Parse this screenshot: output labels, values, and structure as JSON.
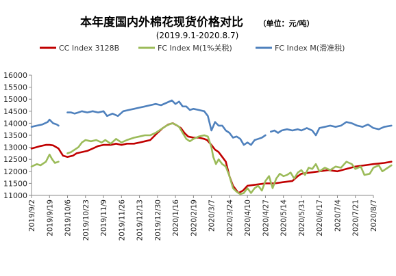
{
  "chart_data": {
    "type": "line",
    "title": "本年度国内外棉花现货价格对比",
    "unit_label": "（单位：元/吨）",
    "subtitle": "(2019.9.1-2020.8.7)",
    "ylim": [
      11000,
      16000
    ],
    "yticks": [
      11000,
      11500,
      12000,
      12500,
      13000,
      13500,
      14000,
      14500,
      15000,
      15500,
      16000
    ],
    "grid": false,
    "legend_position": "top",
    "x_tick_labels": [
      "2019/9/2",
      "2019/9/19",
      "2019/10/6",
      "2019/10/23",
      "2019/11/9",
      "2019/11/26",
      "2019/12/13",
      "2019/12/30",
      "2020/1/16",
      "2020/2/19",
      "2020/3/7",
      "2020/3/24",
      "2020/4/10",
      "2020/4/27",
      "2020/5/14",
      "2020/5/31",
      "2020/6/17",
      "2020/7/4",
      "2020/7/21",
      "2020/8/7"
    ],
    "series": [
      {
        "name": "CC Index 3128B",
        "color": "#c00000",
        "points": [
          [
            0,
            12950
          ],
          [
            0.25,
            13000
          ],
          [
            0.5,
            13050
          ],
          [
            0.8,
            13100
          ],
          [
            1.0,
            13100
          ],
          [
            1.2,
            13080
          ],
          [
            1.5,
            12950
          ],
          [
            1.75,
            12650
          ],
          [
            2.0,
            12600
          ],
          [
            2.3,
            12650
          ],
          [
            2.5,
            12750
          ],
          [
            2.8,
            12800
          ],
          [
            3.1,
            12850
          ],
          [
            3.4,
            12950
          ],
          [
            3.7,
            13050
          ],
          [
            4.0,
            13100
          ],
          [
            4.4,
            13100
          ],
          [
            4.7,
            13150
          ],
          [
            5.0,
            13100
          ],
          [
            5.3,
            13150
          ],
          [
            5.7,
            13150
          ],
          [
            6.0,
            13200
          ],
          [
            6.3,
            13250
          ],
          [
            6.6,
            13300
          ],
          [
            7.0,
            13600
          ],
          [
            7.3,
            13800
          ],
          [
            7.6,
            13950
          ],
          [
            7.85,
            14000
          ],
          [
            8.1,
            13900
          ],
          [
            8.3,
            13800
          ],
          [
            8.5,
            13600
          ],
          [
            8.7,
            13450
          ],
          [
            9.0,
            13400
          ],
          [
            9.3,
            13400
          ],
          [
            9.6,
            13350
          ],
          [
            9.75,
            13300
          ],
          [
            10.0,
            13100
          ],
          [
            10.2,
            12900
          ],
          [
            10.4,
            12800
          ],
          [
            10.6,
            12600
          ],
          [
            10.8,
            12400
          ],
          [
            11.0,
            11800
          ],
          [
            11.2,
            11400
          ],
          [
            11.5,
            11100
          ],
          [
            11.75,
            11200
          ],
          [
            12.0,
            11400
          ],
          [
            12.5,
            11450
          ],
          [
            13.0,
            11500
          ],
          [
            13.5,
            11500
          ],
          [
            14.0,
            11550
          ],
          [
            14.5,
            11600
          ],
          [
            14.8,
            11800
          ],
          [
            15.0,
            11900
          ],
          [
            15.5,
            11950
          ],
          [
            16.0,
            12000
          ],
          [
            16.5,
            12050
          ],
          [
            17.0,
            12000
          ],
          [
            17.5,
            12100
          ],
          [
            18.0,
            12200
          ],
          [
            18.5,
            12250
          ],
          [
            19.0,
            12300
          ],
          [
            19.6,
            12350
          ],
          [
            20.0,
            12400
          ]
        ]
      },
      {
        "name": "FC Index M(1%关税)",
        "color": "#9bbb59",
        "points": [
          [
            0,
            12200
          ],
          [
            0.3,
            12300
          ],
          [
            0.5,
            12250
          ],
          [
            0.8,
            12400
          ],
          [
            1.0,
            12700
          ],
          [
            1.15,
            12500
          ],
          [
            1.3,
            12350
          ],
          [
            1.5,
            12400
          ],
          [
            1.7,
            null
          ],
          [
            2.0,
            12750
          ],
          [
            2.2,
            12800
          ],
          [
            2.4,
            12900
          ],
          [
            2.6,
            13000
          ],
          [
            2.8,
            13200
          ],
          [
            3.0,
            13300
          ],
          [
            3.3,
            13250
          ],
          [
            3.6,
            13300
          ],
          [
            3.9,
            13200
          ],
          [
            4.1,
            13300
          ],
          [
            4.4,
            13150
          ],
          [
            4.7,
            13350
          ],
          [
            5.0,
            13200
          ],
          [
            5.3,
            13300
          ],
          [
            5.7,
            13400
          ],
          [
            6.0,
            13450
          ],
          [
            6.3,
            13500
          ],
          [
            6.6,
            13500
          ],
          [
            6.9,
            13600
          ],
          [
            7.2,
            13750
          ],
          [
            7.5,
            13900
          ],
          [
            7.8,
            14000
          ],
          [
            8.0,
            13950
          ],
          [
            8.2,
            13850
          ],
          [
            8.4,
            13600
          ],
          [
            8.6,
            13350
          ],
          [
            8.8,
            13250
          ],
          [
            9.0,
            13350
          ],
          [
            9.3,
            13450
          ],
          [
            9.6,
            13500
          ],
          [
            9.8,
            13450
          ],
          [
            10.0,
            13000
          ],
          [
            10.1,
            12600
          ],
          [
            10.25,
            12300
          ],
          [
            10.4,
            12500
          ],
          [
            10.6,
            12300
          ],
          [
            10.8,
            12200
          ],
          [
            11.0,
            11800
          ],
          [
            11.2,
            11300
          ],
          [
            11.4,
            11150
          ],
          [
            11.6,
            11050
          ],
          [
            11.8,
            11100
          ],
          [
            12.0,
            11300
          ],
          [
            12.2,
            11100
          ],
          [
            12.4,
            11300
          ],
          [
            12.6,
            11400
          ],
          [
            12.8,
            11200
          ],
          [
            13.0,
            11600
          ],
          [
            13.2,
            11800
          ],
          [
            13.4,
            11300
          ],
          [
            13.6,
            11700
          ],
          [
            13.8,
            11900
          ],
          [
            14.0,
            11800
          ],
          [
            14.2,
            11850
          ],
          [
            14.4,
            11950
          ],
          [
            14.6,
            11700
          ],
          [
            14.8,
            11950
          ],
          [
            15.0,
            12050
          ],
          [
            15.2,
            11850
          ],
          [
            15.4,
            12150
          ],
          [
            15.6,
            12100
          ],
          [
            15.8,
            12300
          ],
          [
            16.0,
            12000
          ],
          [
            16.3,
            12150
          ],
          [
            16.6,
            12050
          ],
          [
            16.9,
            12200
          ],
          [
            17.2,
            12150
          ],
          [
            17.5,
            12400
          ],
          [
            17.8,
            12300
          ],
          [
            18.0,
            12100
          ],
          [
            18.3,
            12200
          ],
          [
            18.5,
            11850
          ],
          [
            18.8,
            11900
          ],
          [
            19.0,
            12150
          ],
          [
            19.3,
            12250
          ],
          [
            19.5,
            12000
          ],
          [
            19.8,
            12150
          ],
          [
            20.0,
            12250
          ]
        ]
      },
      {
        "name": "FC Index M(滑准税)",
        "color": "#4f81bd",
        "points": [
          [
            0,
            13850
          ],
          [
            0.3,
            13900
          ],
          [
            0.6,
            13950
          ],
          [
            0.9,
            14050
          ],
          [
            1.0,
            14150
          ],
          [
            1.2,
            14000
          ],
          [
            1.4,
            13950
          ],
          [
            1.5,
            13900
          ],
          [
            1.7,
            null
          ],
          [
            2.0,
            14450
          ],
          [
            2.2,
            14450
          ],
          [
            2.4,
            14400
          ],
          [
            2.6,
            14450
          ],
          [
            2.8,
            14500
          ],
          [
            3.1,
            14450
          ],
          [
            3.4,
            14500
          ],
          [
            3.7,
            14450
          ],
          [
            4.0,
            14500
          ],
          [
            4.2,
            14300
          ],
          [
            4.5,
            14400
          ],
          [
            4.8,
            14300
          ],
          [
            5.1,
            14500
          ],
          [
            5.4,
            14550
          ],
          [
            5.7,
            14600
          ],
          [
            6.0,
            14650
          ],
          [
            6.3,
            14700
          ],
          [
            6.6,
            14750
          ],
          [
            6.9,
            14800
          ],
          [
            7.2,
            14750
          ],
          [
            7.5,
            14850
          ],
          [
            7.8,
            14950
          ],
          [
            8.0,
            14800
          ],
          [
            8.2,
            14900
          ],
          [
            8.4,
            14700
          ],
          [
            8.6,
            14700
          ],
          [
            8.8,
            14550
          ],
          [
            9.0,
            14600
          ],
          [
            9.3,
            14550
          ],
          [
            9.6,
            14500
          ],
          [
            9.8,
            14300
          ],
          [
            10.0,
            13700
          ],
          [
            10.2,
            14050
          ],
          [
            10.4,
            13900
          ],
          [
            10.6,
            13900
          ],
          [
            10.8,
            13700
          ],
          [
            11.0,
            13600
          ],
          [
            11.2,
            13400
          ],
          [
            11.4,
            13450
          ],
          [
            11.6,
            13350
          ],
          [
            11.8,
            13100
          ],
          [
            12.0,
            13200
          ],
          [
            12.2,
            13100
          ],
          [
            12.4,
            13300
          ],
          [
            12.6,
            13350
          ],
          [
            12.8,
            13400
          ],
          [
            13.0,
            13500
          ],
          [
            13.1,
            null
          ],
          [
            13.3,
            13650
          ],
          [
            13.5,
            13700
          ],
          [
            13.7,
            13600
          ],
          [
            13.9,
            13700
          ],
          [
            14.2,
            13750
          ],
          [
            14.5,
            13700
          ],
          [
            14.8,
            13750
          ],
          [
            15.0,
            13700
          ],
          [
            15.3,
            13800
          ],
          [
            15.6,
            13700
          ],
          [
            15.8,
            13500
          ],
          [
            16.0,
            13800
          ],
          [
            16.3,
            13850
          ],
          [
            16.6,
            13900
          ],
          [
            16.9,
            13850
          ],
          [
            17.2,
            13900
          ],
          [
            17.5,
            14050
          ],
          [
            17.8,
            14000
          ],
          [
            18.1,
            13900
          ],
          [
            18.4,
            13850
          ],
          [
            18.7,
            13950
          ],
          [
            19.0,
            13800
          ],
          [
            19.3,
            13750
          ],
          [
            19.6,
            13850
          ],
          [
            20.0,
            13900
          ]
        ]
      }
    ]
  }
}
